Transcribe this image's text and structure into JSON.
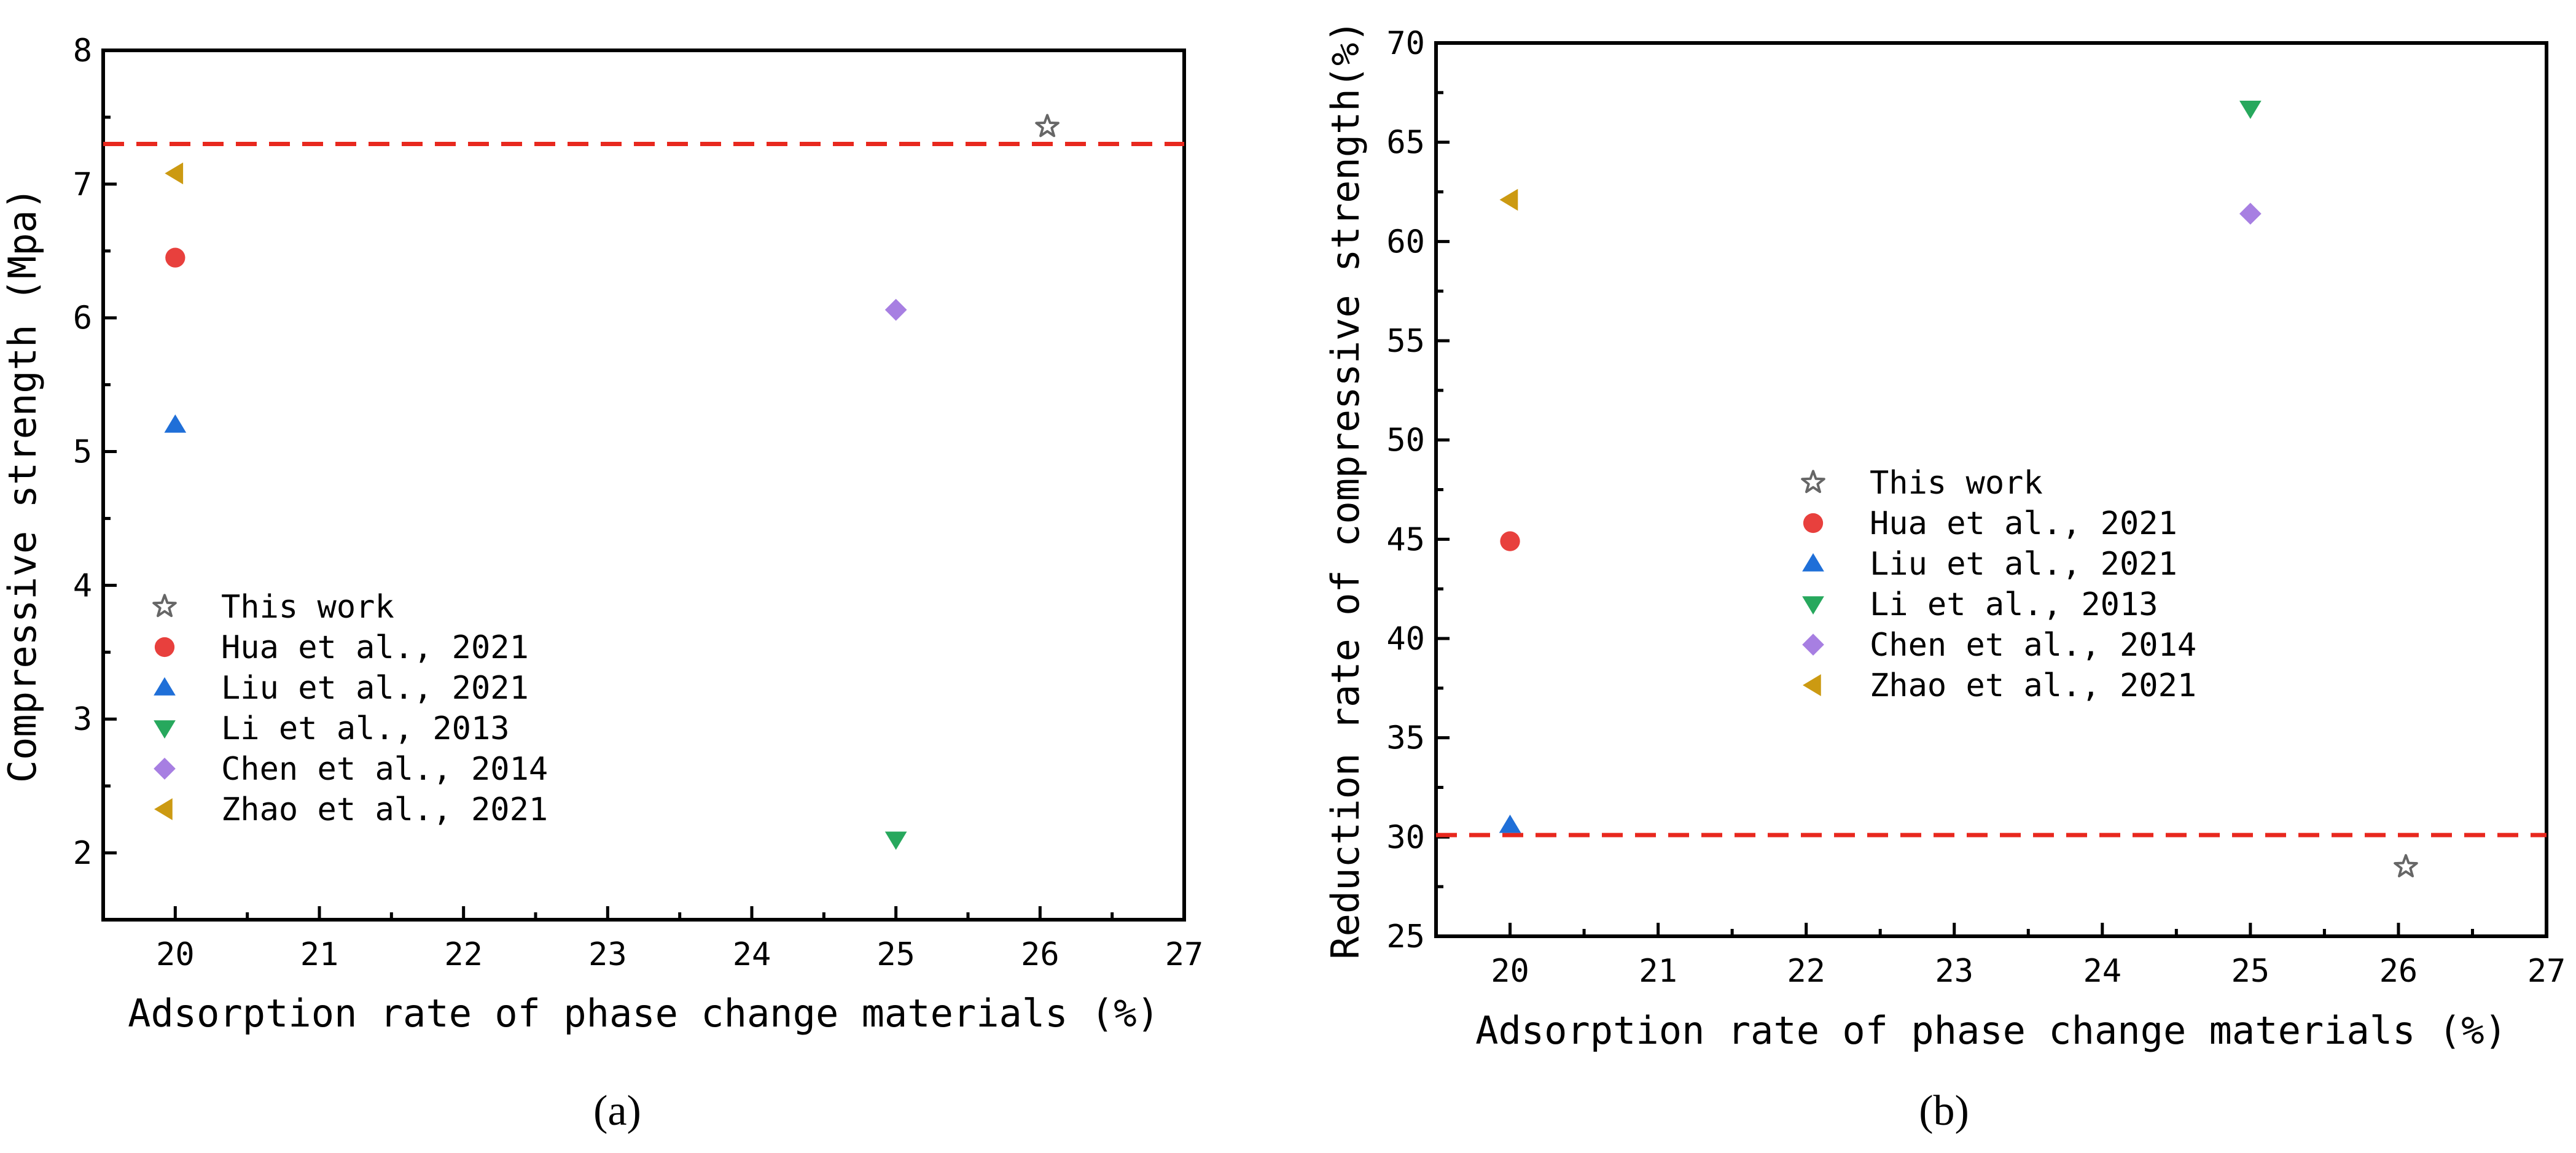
{
  "chart_data": [
    {
      "type": "scatter",
      "panel": "a",
      "caption": "(a)",
      "xlabel": "Adsorption rate of phase change materials (%)",
      "ylabel": "Compressive strength (Mpa)",
      "xlim": [
        19.5,
        27
      ],
      "ylim": [
        1.5,
        8
      ],
      "xticks": [
        20,
        21,
        22,
        23,
        24,
        25,
        26,
        27
      ],
      "yticks": [
        2,
        3,
        4,
        5,
        6,
        7,
        8
      ],
      "reference_line": {
        "y": 7.3,
        "color": "#e8281e",
        "style": "dashed"
      },
      "legend_position": "lower-left",
      "series": [
        {
          "name": "This work",
          "marker": "star",
          "color": "#666666",
          "x": [
            26.05
          ],
          "y": [
            7.43
          ]
        },
        {
          "name": "Hua et al., 2021",
          "marker": "circle",
          "color": "#e8403d",
          "x": [
            20
          ],
          "y": [
            6.45
          ]
        },
        {
          "name": "Liu et al., 2021",
          "marker": "triangle-up",
          "color": "#1f6fd8",
          "x": [
            20
          ],
          "y": [
            5.2
          ]
        },
        {
          "name": "Li et al., 2013",
          "marker": "triangle-down",
          "color": "#27a85d",
          "x": [
            25
          ],
          "y": [
            2.1
          ]
        },
        {
          "name": "Chen et al., 2014",
          "marker": "diamond",
          "color": "#a77fe2",
          "x": [
            25
          ],
          "y": [
            6.06
          ]
        },
        {
          "name": "Zhao et al., 2021",
          "marker": "triangle-left",
          "color": "#cc9a12",
          "x": [
            20
          ],
          "y": [
            7.08
          ]
        }
      ]
    },
    {
      "type": "scatter",
      "panel": "b",
      "caption": "(b)",
      "xlabel": "Adsorption rate of phase change materials (%)",
      "ylabel": "Reduction rate of compressive strength(%)",
      "xlim": [
        19.5,
        27
      ],
      "ylim": [
        25,
        70
      ],
      "xticks": [
        20,
        21,
        22,
        23,
        24,
        25,
        26,
        27
      ],
      "yticks": [
        25,
        30,
        35,
        40,
        45,
        50,
        55,
        60,
        65,
        70
      ],
      "reference_line": {
        "y": 30.1,
        "color": "#e8281e",
        "style": "dashed"
      },
      "legend_position": "center",
      "series": [
        {
          "name": "This work",
          "marker": "star",
          "color": "#666666",
          "x": [
            26.05
          ],
          "y": [
            28.5
          ]
        },
        {
          "name": "Hua et al., 2021",
          "marker": "circle",
          "color": "#e8403d",
          "x": [
            20
          ],
          "y": [
            44.9
          ]
        },
        {
          "name": "Liu et al., 2021",
          "marker": "triangle-up",
          "color": "#1f6fd8",
          "x": [
            20
          ],
          "y": [
            30.6
          ]
        },
        {
          "name": "Li et al., 2013",
          "marker": "triangle-down",
          "color": "#27a85d",
          "x": [
            25
          ],
          "y": [
            66.7
          ]
        },
        {
          "name": "Chen et al., 2014",
          "marker": "diamond",
          "color": "#a77fe2",
          "x": [
            25
          ],
          "y": [
            61.4
          ]
        },
        {
          "name": "Zhao et al., 2021",
          "marker": "triangle-left",
          "color": "#cc9a12",
          "x": [
            20
          ],
          "y": [
            62.1
          ]
        }
      ]
    }
  ]
}
